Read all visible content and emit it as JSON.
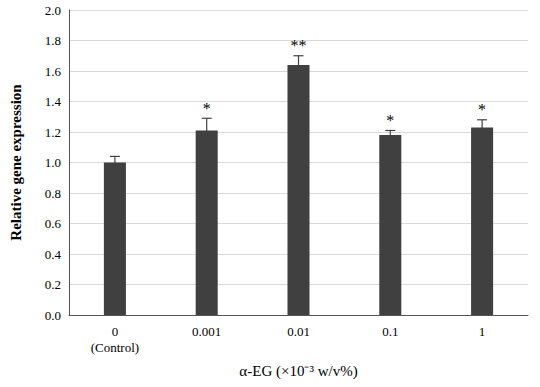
{
  "chart_data": {
    "type": "bar",
    "categories": [
      "0\n(Control)",
      "0.001",
      "0.01",
      "0.1",
      "1"
    ],
    "values": [
      1.0,
      1.21,
      1.64,
      1.18,
      1.23
    ],
    "errors": [
      0.04,
      0.08,
      0.06,
      0.03,
      0.05
    ],
    "significance": [
      null,
      "*",
      "**",
      "*",
      "*"
    ],
    "color": "#404040",
    "x_label": "α-EG (×10⁻³ w/v%)",
    "y_label": "Relative gene expression",
    "ylim": [
      0,
      2.0
    ],
    "yticks": [
      {
        "value": 0,
        "label": "0.0"
      },
      {
        "value": 0.2,
        "label": "0.2"
      },
      {
        "value": 0.4,
        "label": "0.4"
      },
      {
        "value": 0.6,
        "label": "0.6"
      },
      {
        "value": 0.8,
        "label": "0.8"
      },
      {
        "value": 1.0,
        "label": "1.0"
      },
      {
        "value": 1.2,
        "label": "1.2"
      },
      {
        "value": 1.4,
        "label": "1.4"
      },
      {
        "value": 1.6,
        "label": "1.6"
      },
      {
        "value": 1.8,
        "label": "1.8"
      },
      {
        "value": 2.0,
        "label": "2.0"
      }
    ],
    "grid": true
  }
}
